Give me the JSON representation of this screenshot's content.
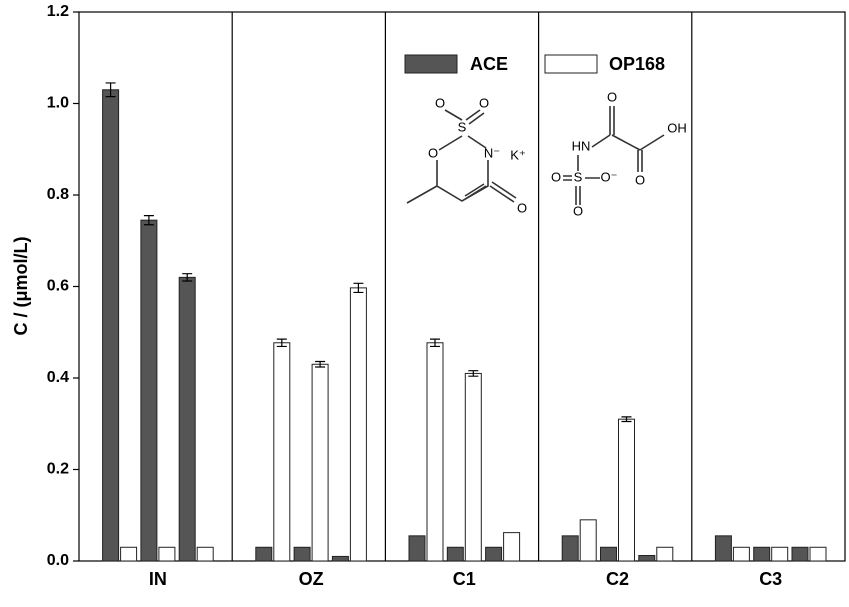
{
  "chart_data": {
    "type": "bar",
    "y_label": "C / (μmol/L)",
    "categories": [
      null,
      "IN",
      null,
      null,
      "OZ",
      null,
      null,
      "C1",
      null,
      null,
      "C2",
      null,
      null,
      "C3",
      null
    ],
    "series": [
      {
        "name": "ACE",
        "color": "#555555",
        "values": [
          1.03,
          0.745,
          0.62,
          0.03,
          0.03,
          0.01,
          0.055,
          0.03,
          0.03,
          0.055,
          0.03,
          0.012,
          0.055,
          0.03,
          0.03
        ],
        "errors": [
          0.015,
          0.01,
          0.008,
          0,
          0,
          0,
          0,
          0,
          0,
          0,
          0,
          0,
          0,
          0,
          0
        ]
      },
      {
        "name": "OP168",
        "color": "#ffffff",
        "values": [
          0.03,
          0.03,
          0.03,
          0.477,
          0.43,
          0.597,
          0.477,
          0.41,
          0.062,
          0.09,
          0.31,
          0.03,
          0.03,
          0.03,
          0.03
        ],
        "errors": [
          0,
          0,
          0,
          0.008,
          0.006,
          0.01,
          0.008,
          0.006,
          0,
          0,
          0.005,
          0,
          0,
          0,
          0
        ]
      }
    ],
    "ylim": [
      0,
      1.2
    ],
    "yticks": [
      {
        "value": 0,
        "label": "0.0"
      },
      0.2,
      0.4,
      0.6,
      0.8,
      {
        "value": 1,
        "label": "1.0"
      },
      1.2
    ],
    "grid": false,
    "structures": [
      {
        "labels": [
          "O",
          "O",
          "S",
          "O",
          "N⁻",
          "K⁺",
          "O"
        ]
      },
      {
        "labels": [
          "O",
          "HN",
          "OH",
          "O",
          "O",
          "S",
          "O⁻",
          "O"
        ]
      }
    ]
  }
}
